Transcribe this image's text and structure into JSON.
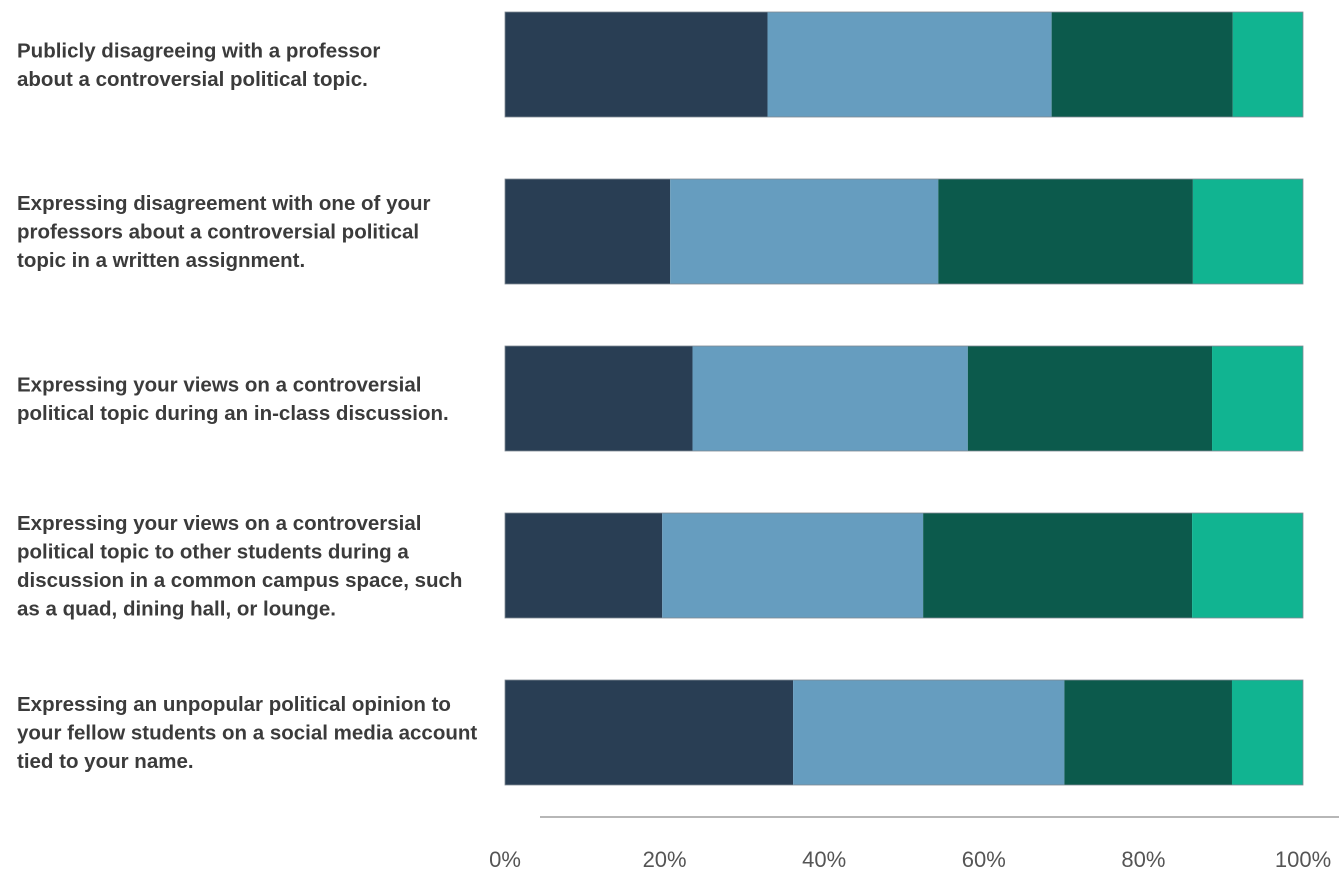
{
  "colors": {
    "segments": [
      "#293e54",
      "#669dbf",
      "#0c5a4c",
      "#11b491"
    ],
    "axis": "#8c8c8c",
    "label_text": "#3b3b3b",
    "tick_text": "#555555"
  },
  "chart_data": {
    "type": "bar",
    "orientation": "horizontal",
    "stacked": true,
    "title": "",
    "xlabel": "",
    "ylabel": "",
    "xlim": [
      0,
      100
    ],
    "legend": "none",
    "grid": false,
    "x_ticks": [
      "0%",
      "20%",
      "40%",
      "60%",
      "80%",
      "100%"
    ],
    "categories": [
      {
        "lines": [
          "Publicly disagreeing with a professor",
          "about a controversial political topic."
        ],
        "values": [
          32.9,
          35.6,
          22.7,
          8.8
        ]
      },
      {
        "lines": [
          "Expressing disagreement with one of your",
          "professors about a controversial political",
          "topic in a written assignment."
        ],
        "values": [
          20.7,
          33.6,
          31.9,
          13.8
        ]
      },
      {
        "lines": [
          "Expressing your views on a controversial",
          "political topic during an in-class discussion."
        ],
        "values": [
          23.5,
          34.5,
          30.6,
          11.4
        ]
      },
      {
        "lines": [
          "Expressing your views on a controversial",
          "political topic to other students during a",
          "discussion in a common campus space, such",
          "as a quad, dining hall, or lounge."
        ],
        "values": [
          19.7,
          32.7,
          33.7,
          13.9
        ]
      },
      {
        "lines": [
          "Expressing an unpopular political opinion to",
          "your fellow students on a social media account",
          "tied to your name."
        ],
        "values": [
          36.1,
          34.0,
          21.0,
          8.9
        ]
      }
    ]
  }
}
